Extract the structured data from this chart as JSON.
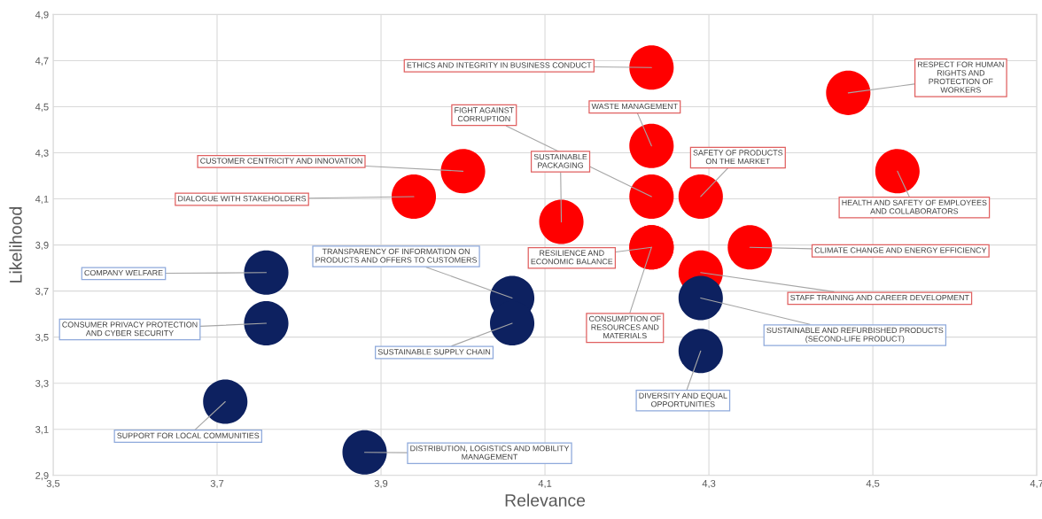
{
  "chart_data": {
    "type": "bubble",
    "xlabel": "Relevance",
    "ylabel": "Likelihood",
    "xlim": [
      3.5,
      4.7
    ],
    "xticks": [
      {
        "value": 3.5,
        "label": "3,5"
      },
      {
        "value": 3.7,
        "label": "3,7"
      },
      {
        "value": 3.9,
        "label": "3,9"
      },
      {
        "value": 4.1,
        "label": "4,1"
      },
      {
        "value": 4.3,
        "label": "4,3"
      },
      {
        "value": 4.5,
        "label": "4,5"
      },
      {
        "value": 4.7,
        "label": "4,7"
      }
    ],
    "ylim": [
      2.9,
      4.9
    ],
    "yticks": [
      {
        "value": 2.9,
        "label": "2,9"
      },
      {
        "value": 3.1,
        "label": "3,1"
      },
      {
        "value": 3.3,
        "label": "3,3"
      },
      {
        "value": 3.5,
        "label": "3,5"
      },
      {
        "value": 3.7,
        "label": "3,7"
      },
      {
        "value": 3.9,
        "label": "3,9"
      },
      {
        "value": 4.1,
        "label": "4,1"
      },
      {
        "value": 4.3,
        "label": "4,3"
      },
      {
        "value": 4.5,
        "label": "4,5"
      },
      {
        "value": 4.7,
        "label": "4,7"
      },
      {
        "value": 4.9,
        "label": "4,9"
      }
    ],
    "grid": true,
    "legend": false,
    "marker": "circle",
    "series": [
      {
        "color": "#ff0000",
        "x": [
          4.23,
          4.23,
          4.23,
          4.0,
          3.94,
          4.12,
          4.29,
          4.47,
          4.53,
          4.35,
          4.23,
          4.29,
          4.23
        ],
        "values": [
          4.67,
          4.11,
          4.33,
          4.22,
          4.11,
          4.0,
          4.11,
          4.56,
          4.22,
          3.89,
          3.89,
          3.78,
          3.89
        ],
        "sizes": [
          1,
          1,
          1,
          1,
          1,
          1,
          1,
          1,
          1,
          1,
          1,
          1,
          1
        ]
      },
      {
        "color": "#0d2160",
        "x": [
          3.76,
          4.06,
          3.76,
          4.06,
          4.29,
          4.29,
          3.71,
          3.88
        ],
        "values": [
          3.78,
          3.67,
          3.56,
          3.56,
          3.67,
          3.44,
          3.22,
          3.0
        ],
        "sizes": [
          1,
          1,
          1,
          1,
          1,
          1,
          1,
          1
        ]
      }
    ],
    "annotations": [
      {
        "text": "ETHICS AND INTEGRITY IN BUSINESS CONDUCT",
        "x": 4.23,
        "y": 4.67
      },
      {
        "text": "FIGHT AGAINST\nCORRUPTION",
        "x": 4.23,
        "y": 4.11
      },
      {
        "text": "WASTE MANAGEMENT",
        "x": 4.23,
        "y": 4.33
      },
      {
        "text": "CUSTOMER CENTRICITY AND INNOVATION",
        "x": 4.0,
        "y": 4.22
      },
      {
        "text": "DIALOGUE WITH STAKEHOLDERS",
        "x": 3.94,
        "y": 4.11
      },
      {
        "text": "SUSTAINABLE\nPACKAGING",
        "x": 4.12,
        "y": 4.0
      },
      {
        "text": "SAFETY OF PRODUCTS\nON THE MARKET",
        "x": 4.29,
        "y": 4.11
      },
      {
        "text": "RESPECT FOR HUMAN\nRIGHTS AND\nPROTECTION OF\nWORKERS",
        "x": 4.47,
        "y": 4.56
      },
      {
        "text": "HEALTH AND SAFETY OF EMPLOYEES\nAND COLLABORATORS",
        "x": 4.53,
        "y": 4.22
      },
      {
        "text": "CLIMATE CHANGE AND ENERGY EFFICIENCY",
        "x": 4.35,
        "y": 3.89
      },
      {
        "text": "RESILIENCE AND\nECONOMIC BALANCE",
        "x": 4.23,
        "y": 3.89
      },
      {
        "text": "STAFF TRAINING AND CAREER DEVELOPMENT",
        "x": 4.29,
        "y": 3.78
      },
      {
        "text": "CONSUMPTION OF\nRESOURCES AND\nMATERIALS",
        "x": 4.23,
        "y": 3.89
      },
      {
        "text": "COMPANY WELFARE",
        "x": 3.76,
        "y": 3.78
      },
      {
        "text": "TRANSPARENCY OF INFORMATION ON\nPRODUCTS AND OFFERS TO CUSTOMERS",
        "x": 4.06,
        "y": 3.67
      },
      {
        "text": "CONSUMER PRIVACY PROTECTION\nAND CYBER SECURITY",
        "x": 3.76,
        "y": 3.56
      },
      {
        "text": "SUSTAINABLE SUPPLY CHAIN",
        "x": 4.06,
        "y": 3.56
      },
      {
        "text": "SUSTAINABLE AND REFURBISHED PRODUCTS\n(SECOND-LIFE PRODUCT)",
        "x": 4.29,
        "y": 3.67
      },
      {
        "text": "DIVERSITY AND EQUAL\nOPPORTUNITIES",
        "x": 4.29,
        "y": 3.44
      },
      {
        "text": "SUPPORT FOR LOCAL COMMUNITIES",
        "x": 3.71,
        "y": 3.22
      },
      {
        "text": "DISTRIBUTION, LOGISTICS AND MOBILITY\nMANAGEMENT",
        "x": 3.88,
        "y": 3.0
      }
    ]
  }
}
